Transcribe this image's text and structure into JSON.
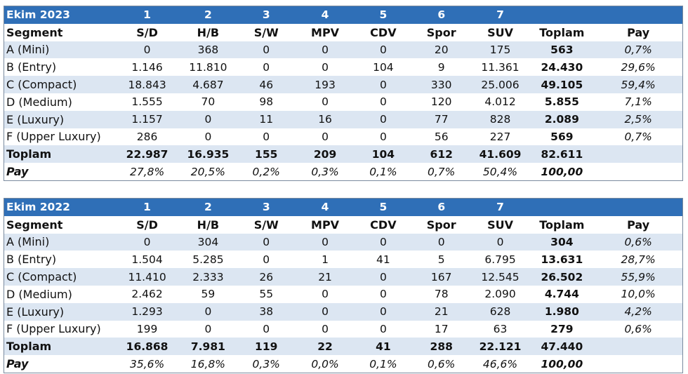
{
  "tables": [
    {
      "title": "Ekim 2023",
      "numbers": [
        "1",
        "2",
        "3",
        "4",
        "5",
        "6",
        "7"
      ],
      "columns": [
        "Segment",
        "S/D",
        "H/B",
        "S/W",
        "MPV",
        "CDV",
        "Spor",
        "SUV",
        "Toplam",
        "Pay"
      ],
      "rows": [
        [
          "A (Mini)",
          "0",
          "368",
          "0",
          "0",
          "0",
          "20",
          "175",
          "563",
          "0,7%"
        ],
        [
          "B (Entry)",
          "1.146",
          "11.810",
          "0",
          "0",
          "104",
          "9",
          "11.361",
          "24.430",
          "29,6%"
        ],
        [
          "C (Compact)",
          "18.843",
          "4.687",
          "46",
          "193",
          "0",
          "330",
          "25.006",
          "49.105",
          "59,4%"
        ],
        [
          "D (Medium)",
          "1.555",
          "70",
          "98",
          "0",
          "0",
          "120",
          "4.012",
          "5.855",
          "7,1%"
        ],
        [
          "E (Luxury)",
          "1.157",
          "0",
          "11",
          "16",
          "0",
          "77",
          "828",
          "2.089",
          "2,5%"
        ],
        [
          "F (Upper Luxury)",
          "286",
          "0",
          "0",
          "0",
          "0",
          "56",
          "227",
          "569",
          "0,7%"
        ]
      ],
      "total": [
        "Toplam",
        "22.987",
        "16.935",
        "155",
        "209",
        "104",
        "612",
        "41.609",
        "82.611",
        ""
      ],
      "share": [
        "Pay",
        "27,8%",
        "20,5%",
        "0,2%",
        "0,3%",
        "0,1%",
        "0,7%",
        "50,4%",
        "100,00",
        ""
      ]
    },
    {
      "title": "Ekim 2022",
      "numbers": [
        "1",
        "2",
        "3",
        "4",
        "5",
        "6",
        "7"
      ],
      "columns": [
        "Segment",
        "S/D",
        "H/B",
        "S/W",
        "MPV",
        "CDV",
        "Spor",
        "SUV",
        "Toplam",
        "Pay"
      ],
      "rows": [
        [
          "A (Mini)",
          "0",
          "304",
          "0",
          "0",
          "0",
          "0",
          "0",
          "304",
          "0,6%"
        ],
        [
          "B (Entry)",
          "1.504",
          "5.285",
          "0",
          "1",
          "41",
          "5",
          "6.795",
          "13.631",
          "28,7%"
        ],
        [
          "C (Compact)",
          "11.410",
          "2.333",
          "26",
          "21",
          "0",
          "167",
          "12.545",
          "26.502",
          "55,9%"
        ],
        [
          "D (Medium)",
          "2.462",
          "59",
          "55",
          "0",
          "0",
          "78",
          "2.090",
          "4.744",
          "10,0%"
        ],
        [
          "E (Luxury)",
          "1.293",
          "0",
          "38",
          "0",
          "0",
          "21",
          "628",
          "1.980",
          "4,2%"
        ],
        [
          "F (Upper Luxury)",
          "199",
          "0",
          "0",
          "0",
          "0",
          "17",
          "63",
          "279",
          "0,6%"
        ]
      ],
      "total": [
        "Toplam",
        "16.868",
        "7.981",
        "119",
        "22",
        "41",
        "288",
        "22.121",
        "47.440",
        ""
      ],
      "share": [
        "Pay",
        "35,6%",
        "16,8%",
        "0,3%",
        "0,0%",
        "0,1%",
        "0,6%",
        "46,6%",
        "100,00",
        ""
      ]
    }
  ],
  "colors": {
    "header_bg": "#2f6fb7",
    "band_bg": "#dce6f2"
  }
}
